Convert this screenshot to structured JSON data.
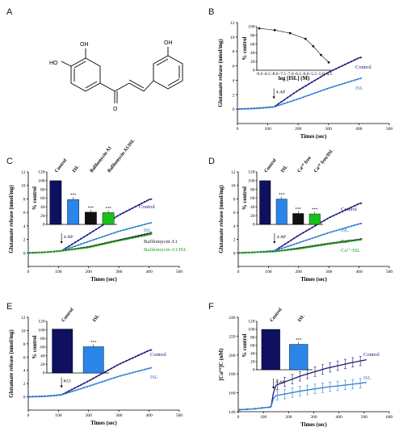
{
  "figure": {
    "panel_letters": [
      "A",
      "B",
      "C",
      "D",
      "E",
      "F"
    ],
    "molecule": {
      "hydroxyl_labels": [
        "HO",
        "OH",
        "OH"
      ],
      "carbonyl_label": "O"
    }
  },
  "colors": {
    "control": "#1a1a7a",
    "isl": "#2f7fd0",
    "baf": "#222222",
    "baf_isl": "#1fa31f",
    "bar_control": "#0f1060",
    "bar_isl": "#2a85e8",
    "bar_black": "#111111",
    "bar_green": "#19c019"
  },
  "chart_data": [
    {
      "panel": "B",
      "type": "line",
      "xlabel": "Times (sec)",
      "ylabel": "Glutamate release (nmol/mg)",
      "xlim": [
        0,
        500
      ],
      "ylim": [
        -2,
        12
      ],
      "xticks": [
        0,
        100,
        200,
        300,
        400,
        500
      ],
      "yticks": [
        0,
        2,
        4,
        6,
        8,
        10,
        12
      ],
      "annotation": "4-AP",
      "annotation_x": 120,
      "series": [
        {
          "name": "Control",
          "x": [
            0,
            60,
            120,
            200,
            300,
            400,
            410
          ],
          "y": [
            0,
            0.1,
            0.3,
            2.6,
            5.1,
            7.1,
            7.2
          ]
        },
        {
          "name": "ISL",
          "x": [
            0,
            60,
            120,
            200,
            300,
            400,
            410
          ],
          "y": [
            0,
            0.1,
            0.3,
            1.4,
            2.9,
            4.2,
            4.3
          ]
        }
      ],
      "inset": {
        "type": "scatter",
        "xlabel": "log [ISL] (M)",
        "ylabel": "% control",
        "xticks": [
          "-9.0",
          "-8.5",
          "-8.0",
          "-7.5",
          "-7.0",
          "-6.5",
          "-6.0",
          "-5.5",
          "-5.0",
          "-4.5"
        ],
        "ylim": [
          0,
          100
        ],
        "yticks": [
          0,
          20,
          40,
          60,
          80,
          100
        ],
        "x": [
          -9,
          -8,
          -7,
          -6,
          -5.5,
          -5,
          -4.5
        ],
        "y": [
          96,
          92,
          85,
          72,
          55,
          35,
          18
        ]
      }
    },
    {
      "panel": "C",
      "type": "line",
      "xlabel": "Times (sec)",
      "ylabel": "Glutamate release (nmol/mg)",
      "xlim": [
        0,
        500
      ],
      "ylim": [
        -2,
        12
      ],
      "xticks": [
        0,
        100,
        200,
        300,
        400,
        500
      ],
      "yticks": [
        0,
        2,
        4,
        6,
        8,
        10,
        12
      ],
      "annotation": "4-AP",
      "annotation_x": 110,
      "series": [
        {
          "name": "Control",
          "x": [
            0,
            60,
            110,
            200,
            300,
            400,
            410
          ],
          "y": [
            0,
            0.1,
            0.3,
            2.8,
            5.6,
            7.9,
            8.0
          ]
        },
        {
          "name": "ISL",
          "x": [
            0,
            60,
            110,
            200,
            300,
            400,
            410
          ],
          "y": [
            0,
            0.1,
            0.3,
            1.7,
            3.2,
            4.4,
            4.5
          ]
        },
        {
          "name": "Bafilomycin A1",
          "x": [
            0,
            60,
            110,
            200,
            300,
            400,
            410
          ],
          "y": [
            0,
            0.1,
            0.3,
            0.9,
            1.9,
            2.9,
            3.0
          ]
        },
        {
          "name": "Bafilomycin A1/ISL",
          "x": [
            0,
            60,
            110,
            200,
            300,
            400,
            410
          ],
          "y": [
            0,
            0.1,
            0.3,
            0.8,
            1.8,
            2.7,
            2.8
          ]
        }
      ],
      "inset": {
        "type": "bar",
        "ylabel": "% control",
        "ylim": [
          0,
          120
        ],
        "yticks": [
          0,
          20,
          40,
          60,
          80,
          100,
          120
        ],
        "categories": [
          "Control",
          "ISL",
          "Bafilomycin A1",
          "Bafilomycin A1/ISL"
        ],
        "values": [
          100,
          57,
          28,
          27
        ],
        "stars": [
          "",
          "***",
          "***",
          "***"
        ]
      }
    },
    {
      "panel": "D",
      "type": "line",
      "xlabel": "Times (sec)",
      "ylabel": "Glutamate release (nmol/mg)",
      "xlim": [
        0,
        500
      ],
      "ylim": [
        -2,
        12
      ],
      "xticks": [
        0,
        100,
        200,
        300,
        400,
        500
      ],
      "yticks": [
        0,
        2,
        4,
        6,
        8,
        10,
        12
      ],
      "annotation": "4-AP",
      "annotation_x": 120,
      "series": [
        {
          "name": "Control",
          "x": [
            0,
            60,
            120,
            200,
            300,
            400,
            410
          ],
          "y": [
            0,
            0.1,
            0.3,
            2.6,
            5.2,
            7.3,
            7.4
          ]
        },
        {
          "name": "ISL",
          "x": [
            0,
            60,
            120,
            200,
            300,
            400,
            410
          ],
          "y": [
            0,
            0.1,
            0.3,
            1.5,
            3.0,
            4.3,
            4.4
          ]
        },
        {
          "name": "Ca²⁺",
          "x": [
            0,
            60,
            120,
            200,
            300,
            400,
            410
          ],
          "y": [
            0,
            0.1,
            0.2,
            0.7,
            1.4,
            2.0,
            2.1
          ]
        },
        {
          "name": "Ca²⁺/ISL",
          "x": [
            0,
            60,
            120,
            200,
            300,
            400,
            410
          ],
          "y": [
            0,
            0.1,
            0.2,
            0.6,
            1.3,
            1.9,
            2.0
          ]
        }
      ],
      "inset": {
        "type": "bar",
        "ylabel": "% control",
        "ylim": [
          0,
          120
        ],
        "yticks": [
          0,
          20,
          40,
          60,
          80,
          100,
          120
        ],
        "categories": [
          "Control",
          "ISL",
          "Ca²⁺ free",
          "Ca²⁺ free/ISL"
        ],
        "values": [
          100,
          58,
          25,
          24
        ],
        "stars": [
          "",
          "***",
          "***",
          "***"
        ]
      }
    },
    {
      "panel": "E",
      "type": "line",
      "xlabel": "Times (sec)",
      "ylabel": "Glutamate release (nmol/mg)",
      "xlim": [
        0,
        500
      ],
      "ylim": [
        -2,
        12
      ],
      "xticks": [
        0,
        100,
        200,
        300,
        400,
        500
      ],
      "yticks": [
        0,
        2,
        4,
        6,
        8,
        10,
        12
      ],
      "annotation": "KCl",
      "annotation_x": 110,
      "series": [
        {
          "name": "Control",
          "x": [
            0,
            60,
            110,
            200,
            300,
            400,
            410
          ],
          "y": [
            0,
            0.1,
            0.3,
            2.4,
            4.9,
            7.0,
            7.1
          ]
        },
        {
          "name": "ISL",
          "x": [
            0,
            60,
            110,
            200,
            300,
            400,
            410
          ],
          "y": [
            0,
            0.1,
            0.3,
            1.6,
            3.1,
            4.3,
            4.4
          ]
        }
      ],
      "inset": {
        "type": "bar",
        "ylabel": "% control",
        "ylim": [
          0,
          120
        ],
        "yticks": [
          0,
          20,
          40,
          60,
          80,
          100,
          120
        ],
        "categories": [
          "Control",
          "ISL"
        ],
        "values": [
          102,
          61
        ],
        "stars": [
          "",
          "***"
        ]
      }
    },
    {
      "panel": "F",
      "type": "line",
      "xlabel": "Times (sec)",
      "ylabel": "[Ca²⁺]C (nM)",
      "xlim": [
        0,
        600
      ],
      "ylim": [
        140,
        240
      ],
      "xticks": [
        0,
        100,
        200,
        300,
        400,
        500,
        600
      ],
      "yticks": [
        140,
        160,
        180,
        200,
        220,
        240
      ],
      "annotation": "4-AP",
      "annotation_x": 140,
      "series": [
        {
          "name": "Control",
          "x": [
            0,
            60,
            130,
            140,
            150,
            250,
            350,
            450,
            510
          ],
          "y": [
            142,
            143,
            145,
            160,
            168,
            178,
            186,
            192,
            195
          ]
        },
        {
          "name": "ISL",
          "x": [
            0,
            60,
            130,
            140,
            150,
            250,
            350,
            450,
            510
          ],
          "y": [
            142,
            143,
            145,
            154,
            157,
            162,
            166,
            169,
            171
          ]
        }
      ],
      "inset": {
        "type": "bar",
        "ylabel": "% control",
        "ylim": [
          0,
          120
        ],
        "yticks": [
          0,
          20,
          40,
          60,
          80,
          100,
          120
        ],
        "categories": [
          "Control",
          "ISL"
        ],
        "values": [
          100,
          63
        ],
        "stars": [
          "",
          "***"
        ]
      }
    }
  ]
}
